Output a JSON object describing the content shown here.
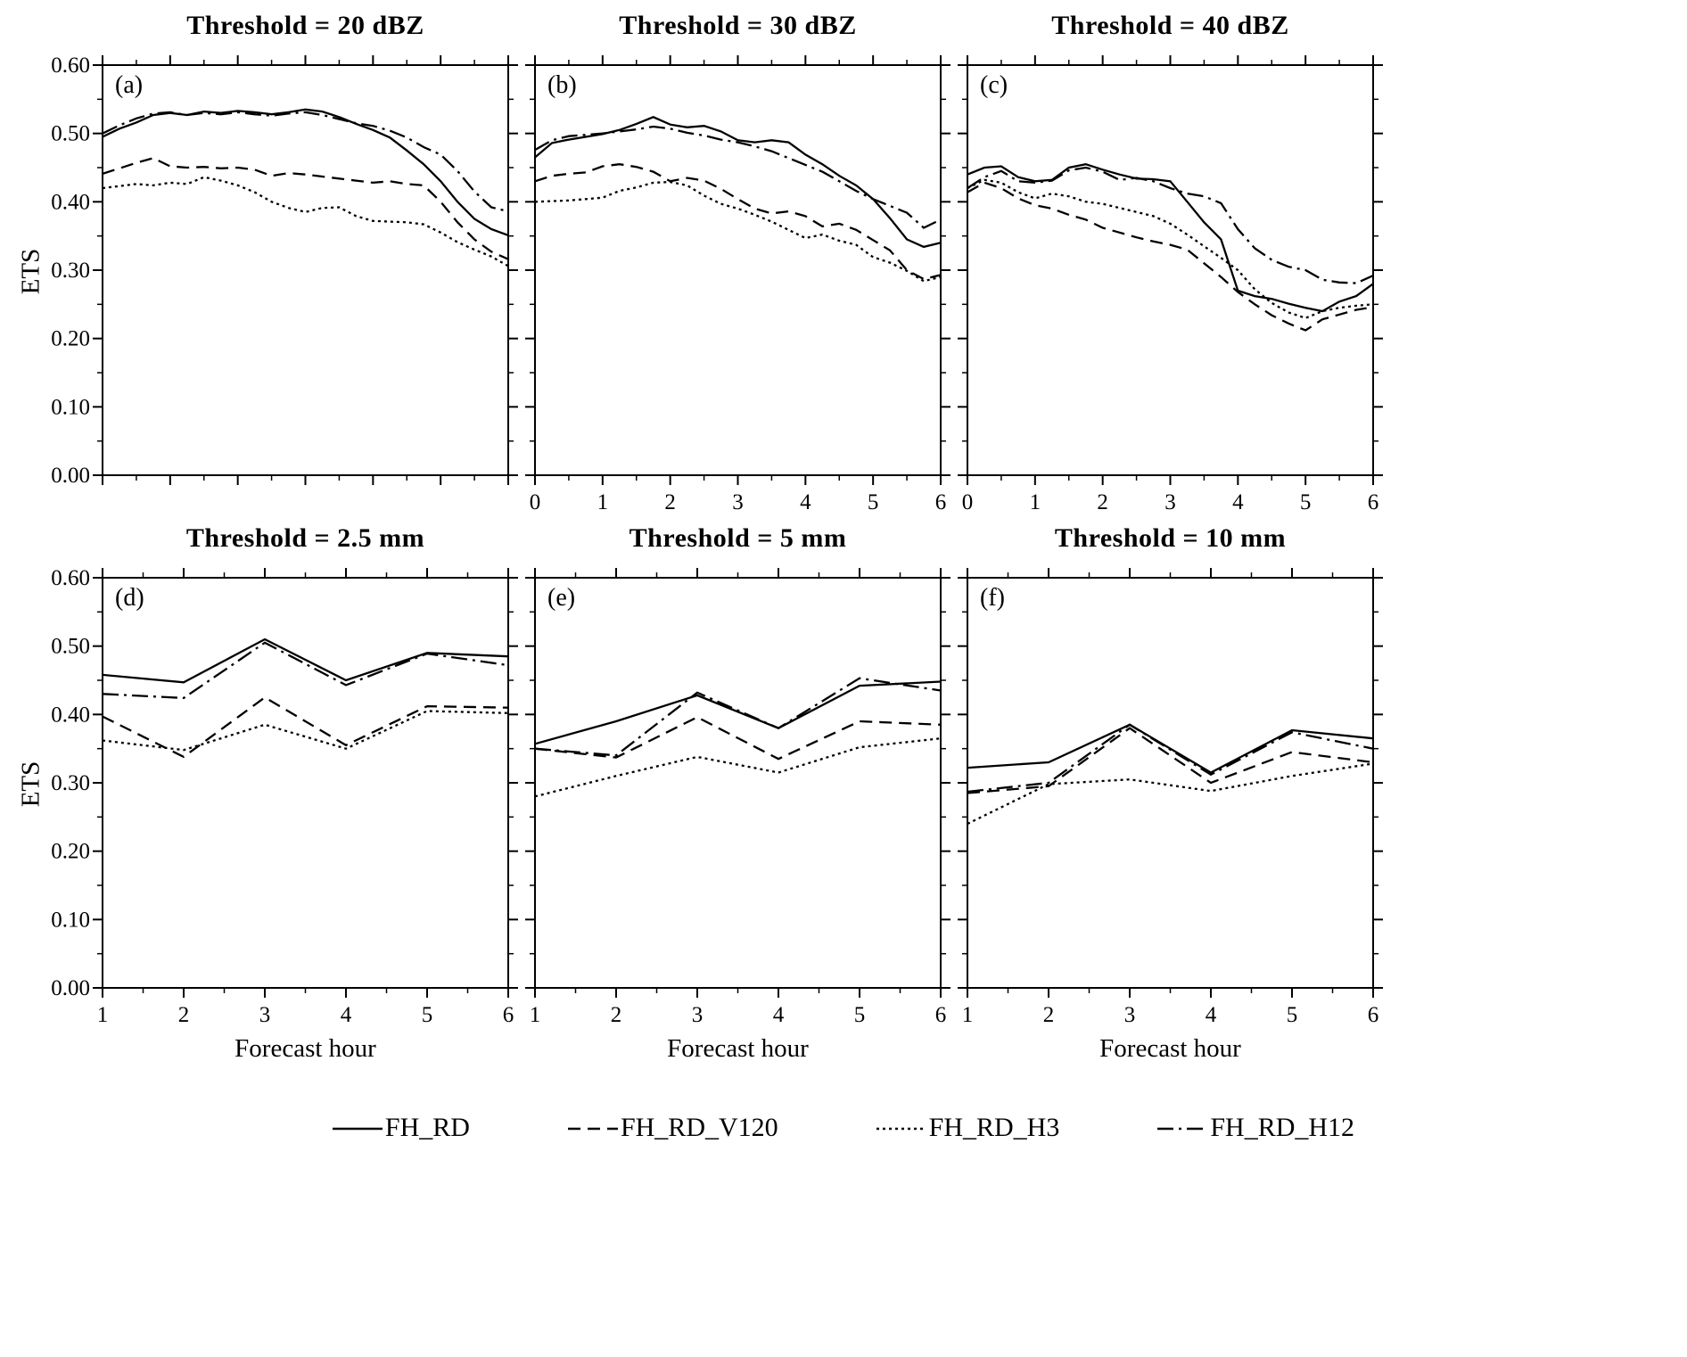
{
  "figure": {
    "ylabel": "ETS",
    "xlabel": "Forecast hour",
    "background": "#ffffff",
    "line_color": "#000000"
  },
  "legend": [
    {
      "label": "FH_RD",
      "style": "solid"
    },
    {
      "label": "FH_RD_V120",
      "style": "dashed"
    },
    {
      "label": "FH_RD_H3",
      "style": "dotted"
    },
    {
      "label": "FH_RD_H12",
      "style": "dashdot"
    }
  ],
  "chart_data": [
    {
      "type": "line",
      "label": "(a)",
      "title": "Threshold = 20 dBZ",
      "xlim": [
        0,
        6
      ],
      "ylim": [
        0,
        0.6
      ],
      "xticks": [
        0,
        1,
        2,
        3,
        4,
        5,
        6
      ],
      "xtick_labels": [],
      "yticks": [
        0,
        0.1,
        0.2,
        0.3,
        0.4,
        0.5,
        0.6
      ],
      "ytick_labels": [
        "0.00",
        "0.10",
        "0.20",
        "0.30",
        "0.40",
        "0.50",
        "0.60"
      ],
      "x": [
        0,
        0.25,
        0.5,
        0.75,
        1,
        1.25,
        1.5,
        1.75,
        2,
        2.25,
        2.5,
        2.75,
        3,
        3.25,
        3.5,
        3.75,
        4,
        4.25,
        4.5,
        4.75,
        5,
        5.25,
        5.5,
        5.75,
        6
      ],
      "series": [
        {
          "name": "FH_RD",
          "style": "solid",
          "values": [
            0.495,
            0.507,
            0.516,
            0.527,
            0.53,
            0.527,
            0.532,
            0.53,
            0.533,
            0.531,
            0.528,
            0.531,
            0.535,
            0.532,
            0.524,
            0.514,
            0.505,
            0.494,
            0.475,
            0.455,
            0.43,
            0.4,
            0.375,
            0.36,
            0.351
          ]
        },
        {
          "name": "FH_RD_V120",
          "style": "dashed",
          "values": [
            0.441,
            0.449,
            0.457,
            0.464,
            0.452,
            0.45,
            0.451,
            0.449,
            0.45,
            0.447,
            0.438,
            0.442,
            0.44,
            0.437,
            0.434,
            0.431,
            0.428,
            0.43,
            0.426,
            0.424,
            0.4,
            0.37,
            0.345,
            0.327,
            0.316
          ]
        },
        {
          "name": "FH_RD_H3",
          "style": "dotted",
          "values": [
            0.42,
            0.423,
            0.426,
            0.424,
            0.428,
            0.426,
            0.436,
            0.431,
            0.424,
            0.414,
            0.4,
            0.391,
            0.385,
            0.391,
            0.392,
            0.379,
            0.372,
            0.371,
            0.37,
            0.367,
            0.355,
            0.341,
            0.33,
            0.32,
            0.306
          ]
        },
        {
          "name": "FH_RD_H12",
          "style": "dashdot",
          "values": [
            0.5,
            0.512,
            0.522,
            0.529,
            0.531,
            0.527,
            0.53,
            0.528,
            0.531,
            0.528,
            0.526,
            0.529,
            0.531,
            0.527,
            0.521,
            0.515,
            0.511,
            0.504,
            0.494,
            0.48,
            0.469,
            0.445,
            0.415,
            0.392,
            0.386
          ]
        }
      ]
    },
    {
      "type": "line",
      "label": "(b)",
      "title": "Threshold = 30 dBZ",
      "xlim": [
        0,
        6
      ],
      "ylim": [
        0,
        0.6
      ],
      "xticks": [
        0,
        1,
        2,
        3,
        4,
        5,
        6
      ],
      "xtick_labels": [
        "0",
        "1",
        "2",
        "3",
        "4",
        "5",
        "6"
      ],
      "yticks": [
        0,
        0.1,
        0.2,
        0.3,
        0.4,
        0.5,
        0.6
      ],
      "ytick_labels": [],
      "x": [
        0,
        0.25,
        0.5,
        0.75,
        1,
        1.25,
        1.5,
        1.75,
        2,
        2.25,
        2.5,
        2.75,
        3,
        3.25,
        3.5,
        3.75,
        4,
        4.25,
        4.5,
        4.75,
        5,
        5.25,
        5.5,
        5.75,
        6
      ],
      "series": [
        {
          "name": "FH_RD",
          "style": "solid",
          "values": [
            0.465,
            0.486,
            0.491,
            0.495,
            0.499,
            0.505,
            0.514,
            0.524,
            0.513,
            0.509,
            0.511,
            0.503,
            0.49,
            0.487,
            0.49,
            0.487,
            0.469,
            0.455,
            0.438,
            0.424,
            0.404,
            0.376,
            0.345,
            0.334,
            0.34
          ]
        },
        {
          "name": "FH_RD_V120",
          "style": "dashed",
          "values": [
            0.43,
            0.438,
            0.441,
            0.443,
            0.452,
            0.455,
            0.451,
            0.444,
            0.43,
            0.435,
            0.431,
            0.419,
            0.404,
            0.39,
            0.383,
            0.386,
            0.379,
            0.364,
            0.368,
            0.359,
            0.344,
            0.329,
            0.3,
            0.287,
            0.293
          ]
        },
        {
          "name": "FH_RD_H3",
          "style": "dotted",
          "values": [
            0.4,
            0.401,
            0.402,
            0.404,
            0.406,
            0.416,
            0.421,
            0.428,
            0.429,
            0.424,
            0.409,
            0.397,
            0.39,
            0.381,
            0.371,
            0.359,
            0.347,
            0.352,
            0.343,
            0.337,
            0.319,
            0.311,
            0.299,
            0.284,
            0.29
          ]
        },
        {
          "name": "FH_RD_H12",
          "style": "dashdot",
          "values": [
            0.476,
            0.49,
            0.496,
            0.498,
            0.5,
            0.503,
            0.506,
            0.51,
            0.507,
            0.501,
            0.497,
            0.491,
            0.487,
            0.481,
            0.474,
            0.464,
            0.454,
            0.444,
            0.43,
            0.416,
            0.404,
            0.394,
            0.384,
            0.362,
            0.374
          ]
        }
      ]
    },
    {
      "type": "line",
      "label": "(c)",
      "title": "Threshold = 40 dBZ",
      "xlim": [
        0,
        6
      ],
      "ylim": [
        0,
        0.6
      ],
      "xticks": [
        0,
        1,
        2,
        3,
        4,
        5,
        6
      ],
      "xtick_labels": [
        "0",
        "1",
        "2",
        "3",
        "4",
        "5",
        "6"
      ],
      "yticks": [
        0,
        0.1,
        0.2,
        0.3,
        0.4,
        0.5,
        0.6
      ],
      "ytick_labels": [],
      "x": [
        0,
        0.25,
        0.5,
        0.75,
        1,
        1.25,
        1.5,
        1.75,
        2,
        2.25,
        2.5,
        2.75,
        3,
        3.25,
        3.5,
        3.75,
        4,
        4.25,
        4.5,
        4.75,
        5,
        5.25,
        5.5,
        5.75,
        6
      ],
      "series": [
        {
          "name": "FH_RD",
          "style": "solid",
          "values": [
            0.44,
            0.45,
            0.452,
            0.436,
            0.43,
            0.432,
            0.45,
            0.455,
            0.447,
            0.44,
            0.434,
            0.433,
            0.43,
            0.4,
            0.37,
            0.345,
            0.27,
            0.262,
            0.258,
            0.251,
            0.245,
            0.24,
            0.254,
            0.262,
            0.28
          ]
        },
        {
          "name": "FH_RD_V120",
          "style": "dashed",
          "values": [
            0.414,
            0.428,
            0.42,
            0.405,
            0.395,
            0.39,
            0.381,
            0.374,
            0.362,
            0.355,
            0.348,
            0.342,
            0.337,
            0.33,
            0.31,
            0.29,
            0.268,
            0.25,
            0.234,
            0.222,
            0.212,
            0.228,
            0.235,
            0.242,
            0.246
          ]
        },
        {
          "name": "FH_RD_H3",
          "style": "dotted",
          "values": [
            0.42,
            0.432,
            0.428,
            0.414,
            0.405,
            0.412,
            0.408,
            0.4,
            0.397,
            0.391,
            0.385,
            0.379,
            0.368,
            0.352,
            0.335,
            0.318,
            0.3,
            0.272,
            0.252,
            0.238,
            0.23,
            0.24,
            0.245,
            0.248,
            0.25
          ]
        },
        {
          "name": "FH_RD_H12",
          "style": "dashdot",
          "values": [
            0.42,
            0.436,
            0.445,
            0.43,
            0.428,
            0.431,
            0.446,
            0.45,
            0.444,
            0.432,
            0.435,
            0.43,
            0.42,
            0.412,
            0.408,
            0.398,
            0.36,
            0.332,
            0.315,
            0.305,
            0.3,
            0.286,
            0.282,
            0.281,
            0.292
          ]
        }
      ]
    },
    {
      "type": "line",
      "label": "(d)",
      "title": "Threshold = 2.5 mm",
      "xlim": [
        1,
        6
      ],
      "ylim": [
        0,
        0.6
      ],
      "xticks": [
        1,
        2,
        3,
        4,
        5,
        6
      ],
      "xtick_labels": [
        "1",
        "2",
        "3",
        "4",
        "5",
        "6"
      ],
      "yticks": [
        0,
        0.1,
        0.2,
        0.3,
        0.4,
        0.5,
        0.6
      ],
      "ytick_labels": [
        "0.00",
        "0.10",
        "0.20",
        "0.30",
        "0.40",
        "0.50",
        "0.60"
      ],
      "x": [
        1,
        2,
        3,
        4,
        5,
        6
      ],
      "series": [
        {
          "name": "FH_RD",
          "style": "solid",
          "values": [
            0.458,
            0.447,
            0.51,
            0.45,
            0.49,
            0.485
          ]
        },
        {
          "name": "FH_RD_V120",
          "style": "dashed",
          "values": [
            0.397,
            0.338,
            0.425,
            0.355,
            0.412,
            0.41
          ]
        },
        {
          "name": "FH_RD_H3",
          "style": "dotted",
          "values": [
            0.362,
            0.348,
            0.385,
            0.35,
            0.405,
            0.402
          ]
        },
        {
          "name": "FH_RD_H12",
          "style": "dashdot",
          "values": [
            0.43,
            0.424,
            0.505,
            0.443,
            0.489,
            0.472
          ]
        }
      ]
    },
    {
      "type": "line",
      "label": "(e)",
      "title": "Threshold = 5 mm",
      "xlim": [
        1,
        6
      ],
      "ylim": [
        0,
        0.6
      ],
      "xticks": [
        1,
        2,
        3,
        4,
        5,
        6
      ],
      "xtick_labels": [
        "1",
        "2",
        "3",
        "4",
        "5",
        "6"
      ],
      "yticks": [
        0,
        0.1,
        0.2,
        0.3,
        0.4,
        0.5,
        0.6
      ],
      "ytick_labels": [],
      "x": [
        1,
        2,
        3,
        4,
        5,
        6
      ],
      "series": [
        {
          "name": "FH_RD",
          "style": "solid",
          "values": [
            0.357,
            0.39,
            0.428,
            0.38,
            0.442,
            0.448
          ]
        },
        {
          "name": "FH_RD_V120",
          "style": "dashed",
          "values": [
            0.35,
            0.337,
            0.396,
            0.335,
            0.39,
            0.385
          ]
        },
        {
          "name": "FH_RD_H3",
          "style": "dotted",
          "values": [
            0.28,
            0.31,
            0.338,
            0.315,
            0.352,
            0.365
          ]
        },
        {
          "name": "FH_RD_H12",
          "style": "dashdot",
          "values": [
            0.35,
            0.34,
            0.432,
            0.38,
            0.453,
            0.435
          ]
        }
      ]
    },
    {
      "type": "line",
      "label": "(f)",
      "title": "Threshold = 10 mm",
      "xlim": [
        1,
        6
      ],
      "ylim": [
        0,
        0.6
      ],
      "xticks": [
        1,
        2,
        3,
        4,
        5,
        6
      ],
      "xtick_labels": [
        "1",
        "2",
        "3",
        "4",
        "5",
        "6"
      ],
      "yticks": [
        0,
        0.1,
        0.2,
        0.3,
        0.4,
        0.5,
        0.6
      ],
      "ytick_labels": [],
      "x": [
        1,
        2,
        3,
        4,
        5,
        6
      ],
      "series": [
        {
          "name": "FH_RD",
          "style": "solid",
          "values": [
            0.322,
            0.33,
            0.385,
            0.315,
            0.377,
            0.365
          ]
        },
        {
          "name": "FH_RD_V120",
          "style": "dashed",
          "values": [
            0.285,
            0.295,
            0.38,
            0.3,
            0.345,
            0.33
          ]
        },
        {
          "name": "FH_RD_H3",
          "style": "dotted",
          "values": [
            0.24,
            0.298,
            0.305,
            0.288,
            0.31,
            0.328
          ]
        },
        {
          "name": "FH_RD_H12",
          "style": "dashdot",
          "values": [
            0.287,
            0.3,
            0.385,
            0.312,
            0.374,
            0.35
          ]
        }
      ]
    }
  ]
}
